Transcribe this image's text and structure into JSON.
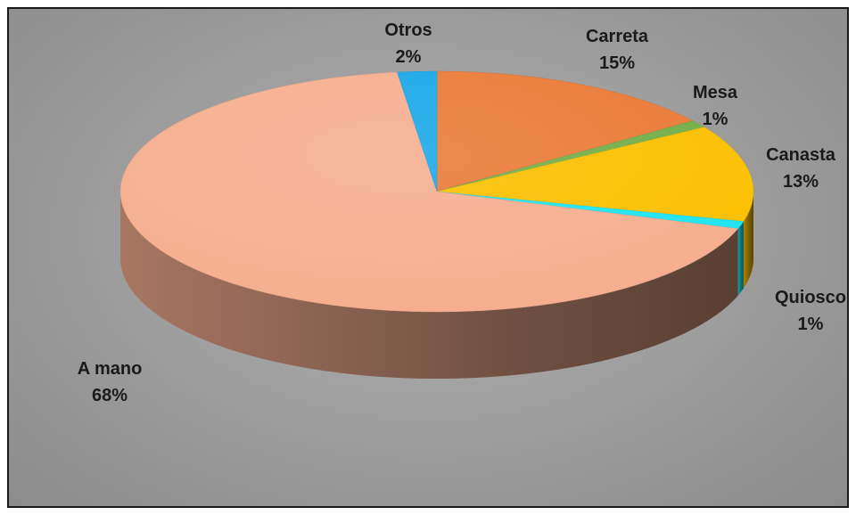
{
  "chart_data": {
    "type": "pie",
    "title": "",
    "series": [
      {
        "values": [
          15,
          1,
          13,
          1,
          68,
          2
        ],
        "categories": [
          "Carreta",
          "Mesa",
          "Canasta",
          "Quiosco",
          "A mano",
          "Otros"
        ]
      }
    ],
    "slices": [
      {
        "label": "Carreta",
        "value": 15,
        "pct": "15%",
        "color": "#E97A36"
      },
      {
        "label": "Mesa",
        "value": 1,
        "pct": "1%",
        "color": "#72AE48"
      },
      {
        "label": "Canasta",
        "value": 13,
        "pct": "13%",
        "color": "#FCC000"
      },
      {
        "label": "Quiosco",
        "value": 1,
        "pct": "1%",
        "color": "#1FE4F0"
      },
      {
        "label": "A mano",
        "value": 68,
        "pct": "68%",
        "color": "#F5AE8F"
      },
      {
        "label": "Otros",
        "value": 2,
        "pct": "2%",
        "color": "#18A8E8"
      }
    ],
    "legend": "none",
    "style": "3d"
  }
}
